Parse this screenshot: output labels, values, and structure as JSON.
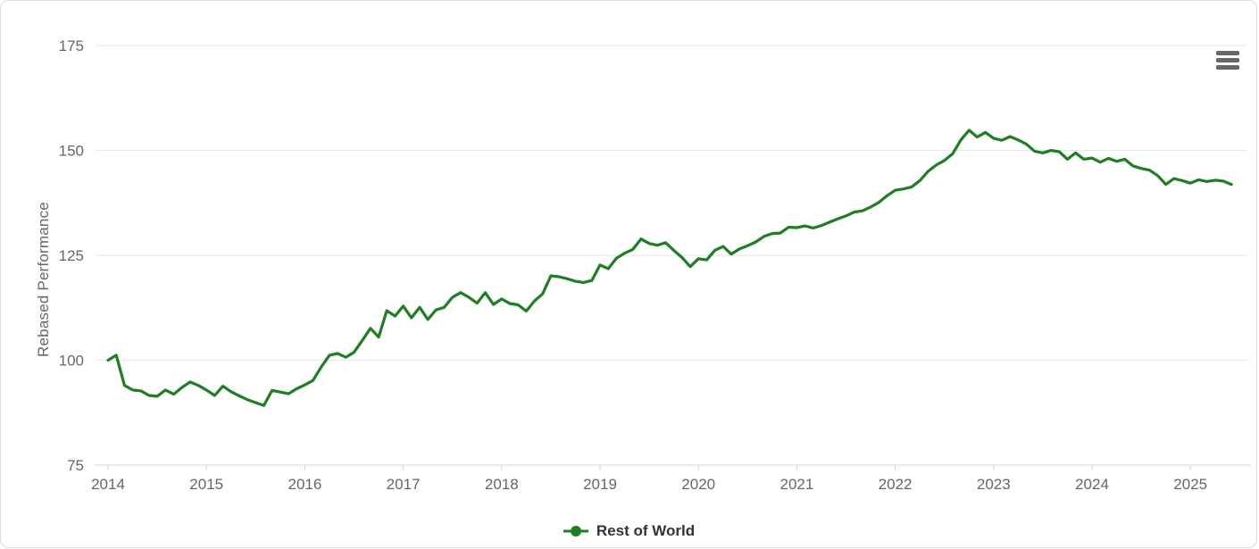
{
  "chart_data": {
    "type": "line",
    "title": "",
    "xlabel": "",
    "ylabel": "Rebased Performance",
    "grid": "horizontal",
    "legend_position": "bottom-center",
    "x_tick_labels": [
      "2014",
      "2015",
      "2016",
      "2017",
      "2018",
      "2019",
      "2020",
      "2021",
      "2022",
      "2023",
      "2024",
      "2025"
    ],
    "y_ticks": [
      75,
      100,
      125,
      150,
      175
    ],
    "ylim": [
      75,
      180
    ],
    "frequency": "monthly",
    "x_range": [
      "2014-01",
      "2025-06"
    ],
    "series": [
      {
        "name": "Rest of World",
        "color": "#1f7d23",
        "values": [
          100.0,
          101.2,
          94.0,
          92.9,
          92.7,
          91.6,
          91.4,
          92.9,
          91.9,
          93.5,
          94.8,
          94.0,
          92.9,
          91.6,
          93.8,
          92.5,
          91.5,
          90.6,
          89.9,
          89.2,
          92.8,
          92.4,
          92.0,
          93.2,
          94.1,
          95.2,
          98.4,
          101.2,
          101.6,
          100.7,
          101.9,
          104.7,
          107.6,
          105.5,
          111.8,
          110.5,
          112.9,
          110.1,
          112.6,
          109.7,
          112.0,
          112.6,
          115.0,
          116.1,
          115.0,
          113.6,
          116.1,
          113.3,
          114.6,
          113.5,
          113.2,
          111.7,
          114.1,
          115.8,
          120.1,
          119.9,
          119.4,
          118.8,
          118.5,
          119.0,
          122.7,
          121.8,
          124.3,
          125.5,
          126.4,
          128.9,
          127.8,
          127.4,
          128.0,
          126.2,
          124.5,
          122.3,
          124.2,
          123.9,
          126.2,
          127.1,
          125.3,
          126.5,
          127.3,
          128.2,
          129.5,
          130.2,
          130.3,
          131.7,
          131.6,
          132.0,
          131.5,
          132.1,
          132.9,
          133.7,
          134.4,
          135.3,
          135.6,
          136.5,
          137.6,
          139.2,
          140.5,
          140.8,
          141.3,
          142.8,
          145.0,
          146.5,
          147.6,
          149.2,
          152.5,
          154.8,
          153.2,
          154.3,
          152.9,
          152.4,
          153.3,
          152.5,
          151.5,
          149.8,
          149.4,
          150.0,
          149.7,
          147.9,
          149.4,
          147.9,
          148.2,
          147.2,
          148.1,
          147.4,
          147.9,
          146.3,
          145.7,
          145.3,
          144.0,
          141.9,
          143.3,
          142.8,
          142.2,
          143.0,
          142.6,
          142.9,
          142.7,
          141.9
        ]
      }
    ]
  },
  "controls": {
    "context_menu_tooltip": "Chart context menu"
  },
  "colors": {
    "series_green": "#1f7d23",
    "grid_line": "#e6e6e6",
    "axis_line": "#ccd6eb",
    "axis_label": "#666666",
    "legend_text": "#333333",
    "menu_icon": "#666666"
  }
}
